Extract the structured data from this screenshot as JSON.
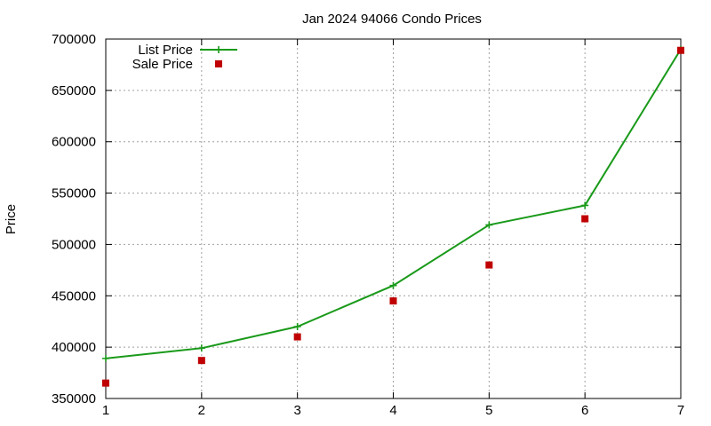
{
  "chart_data": {
    "type": "line",
    "title": "Jan 2024 94066 Condo Prices",
    "xlabel": "",
    "ylabel": "Price",
    "xlim": [
      1,
      7
    ],
    "ylim": [
      350000,
      700000
    ],
    "x_ticks": [
      1,
      2,
      3,
      4,
      5,
      6,
      7
    ],
    "y_ticks": [
      350000,
      400000,
      450000,
      500000,
      550000,
      600000,
      650000,
      700000
    ],
    "grid": true,
    "legend_position": "top-left",
    "series": [
      {
        "name": "List Price",
        "style": "line-with-plus-markers",
        "color": "#1a9a1a",
        "x": [
          1,
          2,
          3,
          4,
          5,
          6,
          7
        ],
        "values": [
          389000,
          399000,
          420000,
          460000,
          519000,
          538000,
          690000
        ]
      },
      {
        "name": "Sale Price",
        "style": "square-markers",
        "color": "#c00000",
        "x": [
          1,
          2,
          3,
          4,
          5,
          6,
          7
        ],
        "values": [
          365000,
          387000,
          410000,
          445000,
          480000,
          525000,
          689000
        ]
      }
    ]
  }
}
